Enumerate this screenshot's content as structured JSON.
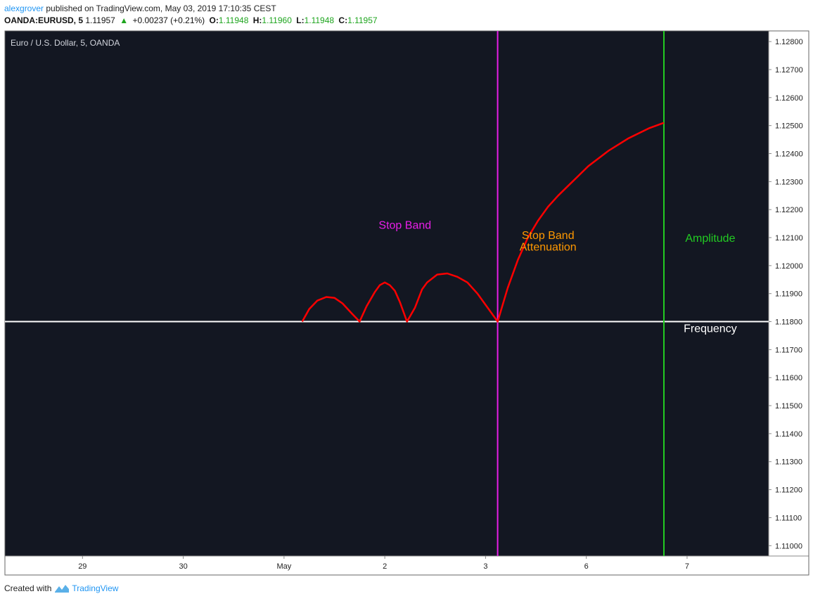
{
  "header": {
    "author": "alexgrover",
    "published_text": "published on TradingView.com, May 03, 2019 17:10:35 CEST",
    "symbol": "OANDA:EURUSD, 5",
    "last": "1.11957",
    "change": "+0.00237 (+0.21%)",
    "open_label": "O:",
    "open": "1.11948",
    "high_label": "H:",
    "high": "1.11960",
    "low_label": "L:",
    "low": "1.11948",
    "close_label": "C:",
    "close": "1.11957"
  },
  "footer": {
    "created_with": "Created with",
    "brand": "TradingView"
  },
  "colors": {
    "background": "#131722",
    "curve": "#ff0000",
    "stop_band_line": "#e91ee9",
    "amplitude_line": "#22cc22",
    "baseline": "#ffffff",
    "stop_band_text": "#e91ee9",
    "attenuation_text": "#ff9800",
    "amplitude_text": "#22cc22",
    "frequency_text": "#ffffff",
    "tick_text": "#222222",
    "up_arrow": "#1ea51e"
  },
  "chart_data": {
    "type": "line",
    "title": "Euro / U.S. Dollar, 5, OANDA",
    "x_ticks": [
      "29",
      "30",
      "May",
      "2",
      "3",
      "6",
      "7"
    ],
    "x_tick_positions": [
      0,
      1,
      2,
      3,
      4,
      5,
      6
    ],
    "xlim": [
      -0.77,
      6.81
    ],
    "y_ticks": [
      "1.12800",
      "1.12700",
      "1.12600",
      "1.12500",
      "1.12400",
      "1.12300",
      "1.12200",
      "1.12100",
      "1.12000",
      "1.11900",
      "1.11800",
      "1.11700",
      "1.11600",
      "1.11500",
      "1.11400",
      "1.11300",
      "1.11200",
      "1.11100",
      "1.11000"
    ],
    "ylim": [
      1.10963,
      1.12838
    ],
    "grid": false,
    "series": [
      {
        "values_x": [
          2.18,
          2.25,
          2.33,
          2.42,
          2.5,
          2.58,
          2.67,
          2.75,
          2.82,
          2.9,
          2.95,
          3.0,
          3.05,
          3.1,
          3.15,
          3.22,
          3.3,
          3.37,
          3.42,
          3.52,
          3.62,
          3.72,
          3.82,
          3.92,
          4.02,
          4.12,
          4.22,
          4.32,
          4.42,
          4.52,
          4.62,
          4.72,
          4.82,
          4.92,
          5.02,
          5.22,
          5.42,
          5.62,
          5.77
        ],
        "values_y": [
          1.118,
          1.11845,
          1.11875,
          1.11888,
          1.11885,
          1.11865,
          1.1183,
          1.118,
          1.11855,
          1.11905,
          1.1193,
          1.1194,
          1.1193,
          1.1191,
          1.1187,
          1.118,
          1.1185,
          1.11915,
          1.1194,
          1.11968,
          1.11972,
          1.1196,
          1.1194,
          1.119,
          1.1185,
          1.118,
          1.1192,
          1.1202,
          1.121,
          1.1216,
          1.1221,
          1.1225,
          1.12285,
          1.1232,
          1.12355,
          1.1241,
          1.12455,
          1.1249,
          1.1251
        ]
      }
    ],
    "baseline_y": 1.118,
    "vlines": [
      {
        "name": "stop-band-edge",
        "x": 4.12
      },
      {
        "name": "amplitude-edge",
        "x": 5.77
      }
    ],
    "annotations": [
      {
        "id": "stop-band",
        "text": "Stop Band",
        "x": 3.2,
        "y": 1.12132
      },
      {
        "id": "attenuation-1",
        "text": "Stop Band",
        "x": 4.62,
        "y": 1.12095
      },
      {
        "id": "attenuation-2",
        "text": "Attenuation",
        "x": 4.62,
        "y": 1.12053
      },
      {
        "id": "amplitude",
        "text": "Amplitude",
        "x": 6.23,
        "y": 1.12085
      },
      {
        "id": "frequency",
        "text": "Frequency",
        "x": 6.23,
        "y": 1.11763
      }
    ]
  }
}
